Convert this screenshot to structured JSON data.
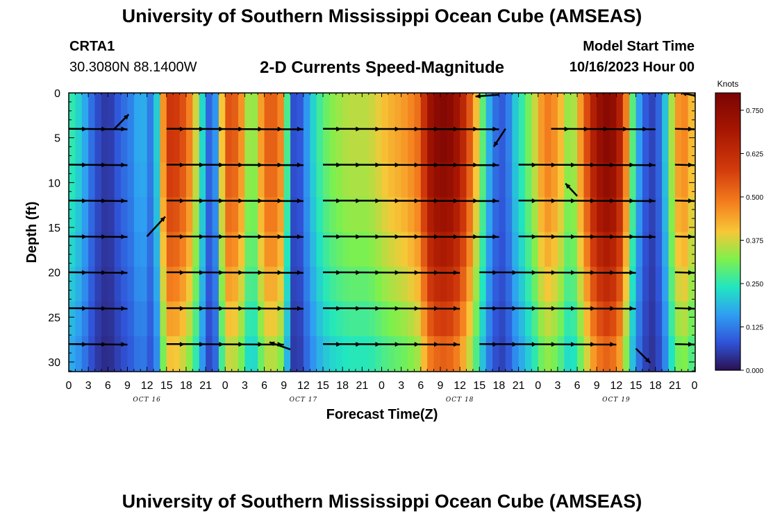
{
  "header": {
    "title": "University of Southern Mississippi Ocean Cube (AMSEAS)",
    "station": "CRTA1",
    "coords": "30.3080N  88.1400W",
    "subtitle": "2-D Currents Speed-Magnitude",
    "model_start_label": "Model Start Time",
    "model_start_value": "10/16/2023 Hour 00"
  },
  "footer": {
    "title": "University of Southern Mississippi Ocean Cube (AMSEAS)"
  },
  "chart_data": {
    "type": "heatmap",
    "title": "2-D Currents Speed-Magnitude",
    "xlabel": "Forecast Time(Z)",
    "ylabel": "Depth (ft)",
    "x_range_hours": [
      0,
      96
    ],
    "ylim": [
      0,
      31
    ],
    "y_inverted": true,
    "x_tick_labels": [
      "0",
      "3",
      "6",
      "9",
      "12",
      "15",
      "18",
      "21",
      "0",
      "3",
      "6",
      "9",
      "12",
      "15",
      "18",
      "21",
      "0",
      "3",
      "6",
      "9",
      "12",
      "15",
      "18",
      "21",
      "0",
      "3",
      "6",
      "9",
      "12",
      "15",
      "18",
      "21",
      "0"
    ],
    "y_ticks": [
      0,
      5,
      10,
      15,
      20,
      25,
      30
    ],
    "day_labels": [
      {
        "hour": 12,
        "label": "OCT 16"
      },
      {
        "hour": 36,
        "label": "OCT 17"
      },
      {
        "hour": 60,
        "label": "OCT 18"
      },
      {
        "hour": 84,
        "label": "OCT 19"
      }
    ],
    "colorbar": {
      "label": "Knots",
      "range": [
        0,
        0.8
      ],
      "ticks": [
        "0.000",
        "0.125",
        "0.250",
        "0.375",
        "0.500",
        "0.625",
        "0.750"
      ],
      "tick_values": [
        0,
        0.125,
        0.25,
        0.375,
        0.5,
        0.625,
        0.75
      ]
    },
    "speed_profile": {
      "hours": [
        0,
        2,
        4,
        6,
        8,
        10,
        11,
        13,
        14,
        15,
        17,
        19,
        21,
        22,
        23,
        24,
        26,
        28,
        30,
        31,
        33,
        34,
        35,
        36,
        38,
        40,
        43,
        46,
        49,
        52,
        54,
        55,
        57,
        59,
        61,
        63,
        65,
        67,
        68,
        70,
        72,
        73,
        75,
        77,
        79,
        81,
        83,
        85,
        86,
        88,
        90,
        92,
        93,
        95,
        96
      ],
      "knots": [
        0.27,
        0.2,
        0.08,
        0.04,
        0.1,
        0.14,
        0.2,
        0.1,
        0.32,
        0.6,
        0.58,
        0.45,
        0.15,
        0.05,
        0.25,
        0.55,
        0.52,
        0.28,
        0.5,
        0.55,
        0.45,
        0.1,
        0.05,
        0.12,
        0.25,
        0.32,
        0.36,
        0.36,
        0.42,
        0.46,
        0.52,
        0.7,
        0.78,
        0.75,
        0.6,
        0.35,
        0.12,
        0.08,
        0.18,
        0.28,
        0.4,
        0.5,
        0.45,
        0.3,
        0.5,
        0.72,
        0.78,
        0.62,
        0.35,
        0.1,
        0.05,
        0.25,
        0.45,
        0.48,
        0.35
      ],
      "depth_factor": [
        1.0,
        1.0,
        0.97,
        0.93,
        0.88,
        0.82,
        0.75,
        0.68
      ]
    },
    "vector_rows": [
      {
        "depth": 4,
        "segments": [
          [
            0,
            9
          ],
          [
            15,
            36
          ],
          [
            39,
            66
          ],
          [
            74,
            90
          ],
          [
            93,
            96
          ]
        ]
      },
      {
        "depth": 8,
        "segments": [
          [
            0,
            9
          ],
          [
            15,
            36
          ],
          [
            39,
            66
          ],
          [
            69,
            90
          ],
          [
            93,
            96
          ]
        ]
      },
      {
        "depth": 12,
        "segments": [
          [
            0,
            9
          ],
          [
            15,
            36
          ],
          [
            39,
            66
          ],
          [
            69,
            90
          ],
          [
            93,
            96
          ]
        ]
      },
      {
        "depth": 16,
        "segments": [
          [
            0,
            9
          ],
          [
            15,
            36
          ],
          [
            39,
            66
          ],
          [
            69,
            90
          ],
          [
            93,
            96
          ]
        ]
      },
      {
        "depth": 20,
        "segments": [
          [
            0,
            9
          ],
          [
            15,
            36
          ],
          [
            39,
            60
          ],
          [
            63,
            87
          ],
          [
            93,
            96
          ]
        ]
      },
      {
        "depth": 24,
        "segments": [
          [
            0,
            9
          ],
          [
            15,
            36
          ],
          [
            39,
            60
          ],
          [
            63,
            87
          ],
          [
            93,
            96
          ]
        ]
      },
      {
        "depth": 28,
        "segments": [
          [
            0,
            9
          ],
          [
            15,
            33
          ],
          [
            39,
            60
          ],
          [
            63,
            84
          ],
          [
            93,
            96
          ]
        ]
      }
    ],
    "standalone_arrows": [
      {
        "hour": 12,
        "depth": 16,
        "dx": 2.8,
        "dy": -2.2
      },
      {
        "hour": 7,
        "depth": 4,
        "dx": 2.2,
        "dy": -1.6
      },
      {
        "hour": 34,
        "depth": 28.6,
        "dx": -3.2,
        "dy": -0.8
      },
      {
        "hour": 67,
        "depth": 4,
        "dx": -1.8,
        "dy": 2.0
      },
      {
        "hour": 66,
        "depth": 0.2,
        "dx": -3.6,
        "dy": 0.2
      },
      {
        "hour": 78,
        "depth": 11.5,
        "dx": -1.8,
        "dy": -1.4
      },
      {
        "hour": 87,
        "depth": 28.5,
        "dx": 2.2,
        "dy": 1.6
      },
      {
        "hour": 96,
        "depth": 0.3,
        "dx": -2.0,
        "dy": -0.3
      }
    ]
  }
}
